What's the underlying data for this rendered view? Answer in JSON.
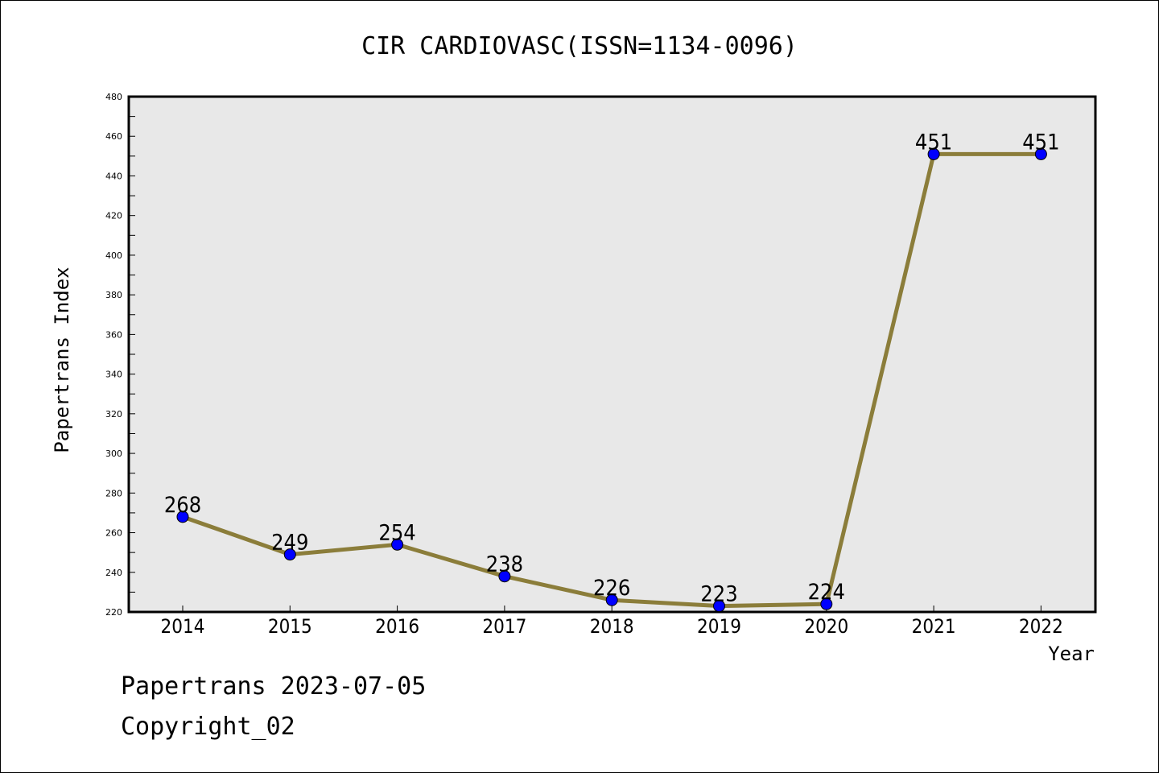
{
  "chart_data": {
    "type": "line",
    "title": "CIR CARDIOVASC(ISSN=1134-0096)",
    "xlabel": "Year",
    "ylabel": "Papertrans Index",
    "categories": [
      "2014",
      "2015",
      "2016",
      "2017",
      "2018",
      "2019",
      "2020",
      "2021",
      "2022"
    ],
    "series": [
      {
        "values": [
          268,
          249,
          254,
          238,
          226,
          223,
          224,
          451,
          451
        ]
      }
    ],
    "data_labels": [
      "268",
      "249",
      "254",
      "238",
      "226",
      "223",
      "224",
      "451",
      "451"
    ],
    "ylim": [
      220,
      480
    ],
    "yticks": [
      220,
      240,
      260,
      280,
      300,
      320,
      340,
      360,
      380,
      400,
      420,
      440,
      460,
      480
    ],
    "grid": false,
    "line_color": "#8b7d3a",
    "marker_color": "#0000ff",
    "plot_background": "#e8e8e8"
  },
  "footer": {
    "line1": "Papertrans 2023-07-05",
    "line2": "Copyright_02"
  }
}
